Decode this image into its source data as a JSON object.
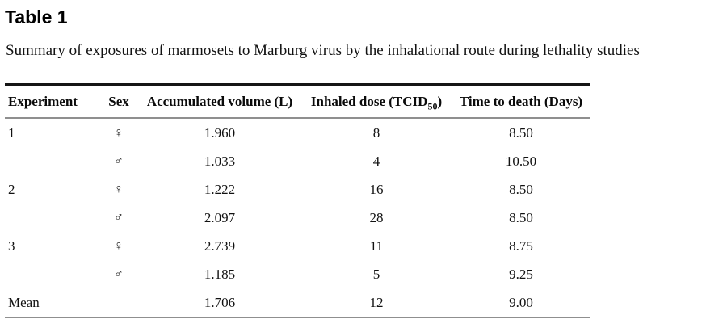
{
  "page": {
    "title": "Table 1",
    "caption": "Summary of exposures of marmosets to Marburg virus by the inhalational route during lethality studies"
  },
  "colors": {
    "background": "#ffffff",
    "text": "#121212",
    "top_rule": "#151515",
    "gray_rule": "#8f8f8f"
  },
  "table": {
    "headers": {
      "experiment": "Experiment",
      "sex": "Sex",
      "accumulated_volume": "Accumulated volume (L)",
      "inhaled_dose_prefix": "Inhaled dose (TCID",
      "inhaled_dose_sub": "50",
      "inhaled_dose_suffix": ")",
      "time_to_death": "Time to death (Days)"
    },
    "rows": [
      {
        "experiment": "1",
        "sex": "♀",
        "volume": "1.960",
        "dose": "8",
        "time": "8.50"
      },
      {
        "experiment": "",
        "sex": "♂",
        "volume": "1.033",
        "dose": "4",
        "time": "10.50"
      },
      {
        "experiment": "2",
        "sex": "♀",
        "volume": "1.222",
        "dose": "16",
        "time": "8.50"
      },
      {
        "experiment": "",
        "sex": "♂",
        "volume": "2.097",
        "dose": "28",
        "time": "8.50"
      },
      {
        "experiment": "3",
        "sex": "♀",
        "volume": "2.739",
        "dose": "11",
        "time": "8.75"
      },
      {
        "experiment": "",
        "sex": "♂",
        "volume": "1.185",
        "dose": "5",
        "time": "9.25"
      },
      {
        "experiment": "Mean",
        "sex": "",
        "volume": "1.706",
        "dose": "12",
        "time": "9.00"
      }
    ]
  }
}
